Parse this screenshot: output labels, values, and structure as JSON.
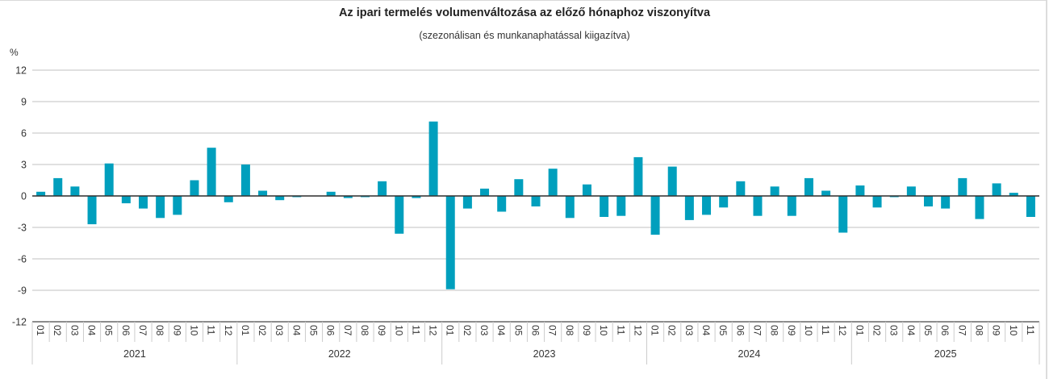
{
  "header": {
    "title": "Az ipari termelés volumenváltozása az előző hónaphoz viszonyítva",
    "subtitle": "(szezonálisan és munkanaphatással kiigazítva)",
    "unit_label": "%"
  },
  "colors": {
    "bar": "#009fbd",
    "grid": "#d6d6d6",
    "zero_line": "#333333",
    "axis": "#8c8c8c",
    "separator": "#cccccc",
    "text": "#333333"
  },
  "chart_data": {
    "type": "bar",
    "title": "Az ipari termelés volumenváltozása az előző hónaphoz viszonyítva",
    "subtitle": "(szezonálisan és munkanaphatással kiigazítva)",
    "xlabel": "",
    "ylabel": "%",
    "ylim": [
      -12,
      12
    ],
    "yticks": [
      12,
      9,
      6,
      3,
      0,
      -3,
      -6,
      -9,
      -12
    ],
    "grid": true,
    "legend": null,
    "groups": [
      {
        "year": "2021",
        "months": [
          "01",
          "02",
          "03",
          "04",
          "05",
          "06",
          "07",
          "08",
          "09",
          "10",
          "11",
          "12"
        ],
        "values": [
          0.4,
          1.7,
          0.9,
          -2.7,
          3.1,
          -0.7,
          -1.2,
          -2.1,
          -1.8,
          1.5,
          4.6,
          -0.6
        ]
      },
      {
        "year": "2022",
        "months": [
          "01",
          "02",
          "03",
          "04",
          "05",
          "06",
          "07",
          "08",
          "09",
          "10",
          "11",
          "12"
        ],
        "values": [
          3.0,
          0.5,
          -0.4,
          -0.1,
          0.0,
          0.4,
          -0.2,
          -0.1,
          1.4,
          -3.6,
          -0.2,
          7.1
        ]
      },
      {
        "year": "2023",
        "months": [
          "01",
          "02",
          "03",
          "04",
          "05",
          "06",
          "07",
          "08",
          "09",
          "10",
          "11",
          "12"
        ],
        "values": [
          -8.9,
          -1.2,
          0.7,
          -1.5,
          1.6,
          -1.0,
          2.6,
          -2.1,
          1.1,
          -2.0,
          -1.9,
          3.7
        ]
      },
      {
        "year": "2024",
        "months": [
          "01",
          "02",
          "03",
          "04",
          "05",
          "06",
          "07",
          "08",
          "09",
          "10",
          "11",
          "12"
        ],
        "values": [
          -3.7,
          2.8,
          -2.3,
          -1.8,
          -1.1,
          1.4,
          -1.9,
          0.9,
          -1.9,
          1.7,
          0.5,
          -3.5
        ]
      },
      {
        "year": "2025",
        "months": [
          "01",
          "02",
          "03",
          "04",
          "05",
          "06",
          "07",
          "08",
          "09",
          "10",
          "11"
        ],
        "values": [
          1.0,
          -1.1,
          -0.1,
          0.9,
          -1.0,
          -1.2,
          1.7,
          -2.2,
          1.2,
          0.3,
          -2.0
        ]
      }
    ]
  }
}
